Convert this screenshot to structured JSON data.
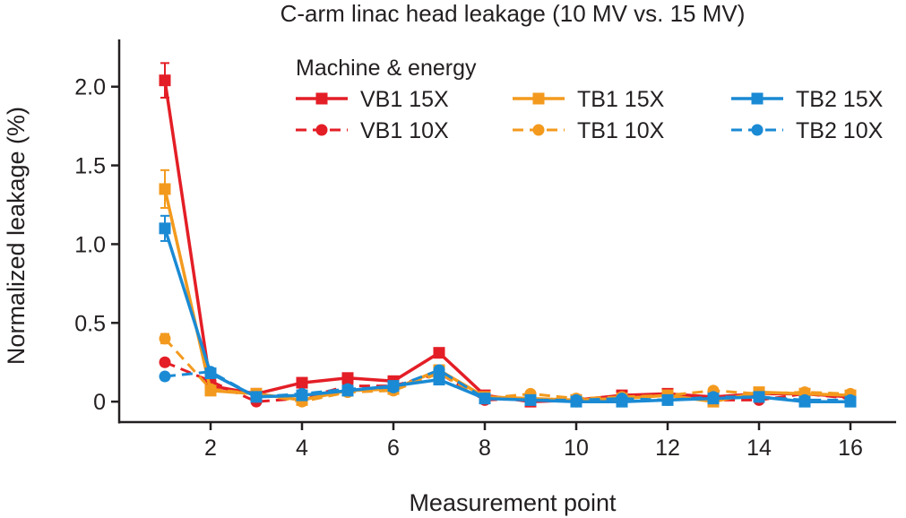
{
  "chart_data": {
    "type": "line",
    "title": "C-arm linac head leakage (10 MV vs. 15 MV)",
    "xlabel": "Measurement point",
    "ylabel": "Normalized leakage (%)",
    "xlim": [
      0,
      17
    ],
    "ylim": [
      -0.13,
      2.3
    ],
    "x_ticks": [
      "2",
      "4",
      "6",
      "8",
      "10",
      "12",
      "14",
      "16"
    ],
    "y_ticks": [
      "0",
      "0.5",
      "1.0",
      "1.5",
      "2.0"
    ],
    "grid": false,
    "legend_title": "Machine & energy",
    "legend_position": "top-right",
    "x": [
      1,
      2,
      3,
      4,
      5,
      6,
      7,
      8,
      9,
      10,
      11,
      12,
      13,
      14,
      15,
      16
    ],
    "series": [
      {
        "name": "VB1 15X",
        "color": "#e41e26",
        "line": "solid",
        "marker": "square",
        "values": [
          2.04,
          0.1,
          0.05,
          0.12,
          0.15,
          0.13,
          0.31,
          0.04,
          0.0,
          0.01,
          0.04,
          0.05,
          0.03,
          0.05,
          0.05,
          0.03
        ],
        "errors": [
          0.11,
          0.02,
          0.01,
          0.01,
          0.01,
          0.01,
          0.02,
          0.01,
          0.01,
          0.01,
          0.01,
          0.01,
          0.01,
          0.01,
          0.01,
          0.01
        ]
      },
      {
        "name": "VB1 10X",
        "color": "#e41e26",
        "line": "dashed",
        "marker": "circle",
        "values": [
          0.25,
          0.13,
          0.0,
          0.02,
          0.1,
          0.1,
          0.18,
          0.01,
          0.02,
          0.0,
          0.03,
          0.04,
          0.01,
          0.01,
          0.05,
          0.02
        ],
        "errors": [
          0.02,
          0.01,
          0.01,
          0.01,
          0.01,
          0.01,
          0.02,
          0.01,
          0.01,
          0.01,
          0.01,
          0.01,
          0.01,
          0.01,
          0.01,
          0.01
        ]
      },
      {
        "name": "TB1 15X",
        "color": "#f39a1e",
        "line": "solid",
        "marker": "square",
        "values": [
          1.35,
          0.07,
          0.05,
          0.01,
          0.07,
          0.08,
          0.2,
          0.03,
          0.02,
          0.01,
          0.02,
          0.04,
          0.0,
          0.06,
          0.05,
          0.04
        ],
        "errors": [
          0.12,
          0.02,
          0.01,
          0.01,
          0.01,
          0.01,
          0.02,
          0.01,
          0.01,
          0.01,
          0.01,
          0.01,
          0.01,
          0.01,
          0.01,
          0.01
        ]
      },
      {
        "name": "TB1 10X",
        "color": "#f39a1e",
        "line": "dashed",
        "marker": "circle",
        "values": [
          0.4,
          0.08,
          0.05,
          0.0,
          0.06,
          0.07,
          0.18,
          0.02,
          0.05,
          0.02,
          0.03,
          0.04,
          0.07,
          0.05,
          0.06,
          0.05
        ],
        "errors": [
          0.03,
          0.01,
          0.01,
          0.01,
          0.01,
          0.01,
          0.02,
          0.01,
          0.01,
          0.01,
          0.01,
          0.01,
          0.01,
          0.01,
          0.01,
          0.01
        ]
      },
      {
        "name": "TB2 15X",
        "color": "#1a8ad4",
        "line": "solid",
        "marker": "square",
        "values": [
          1.1,
          0.18,
          0.03,
          0.04,
          0.07,
          0.1,
          0.14,
          0.02,
          0.01,
          0.0,
          0.0,
          0.01,
          0.02,
          0.03,
          0.0,
          0.0
        ],
        "errors": [
          0.08,
          0.02,
          0.01,
          0.01,
          0.01,
          0.01,
          0.02,
          0.01,
          0.01,
          0.01,
          0.01,
          0.01,
          0.01,
          0.01,
          0.01,
          0.01
        ]
      },
      {
        "name": "TB2 10X",
        "color": "#1a8ad4",
        "line": "dashed",
        "marker": "circle",
        "values": [
          0.16,
          0.19,
          0.03,
          0.05,
          0.08,
          0.09,
          0.2,
          0.02,
          0.01,
          0.01,
          0.02,
          0.01,
          0.03,
          0.03,
          0.01,
          0.01
        ],
        "errors": [
          0.02,
          0.01,
          0.01,
          0.01,
          0.01,
          0.01,
          0.02,
          0.01,
          0.01,
          0.01,
          0.01,
          0.01,
          0.01,
          0.01,
          0.01,
          0.01
        ]
      }
    ]
  }
}
